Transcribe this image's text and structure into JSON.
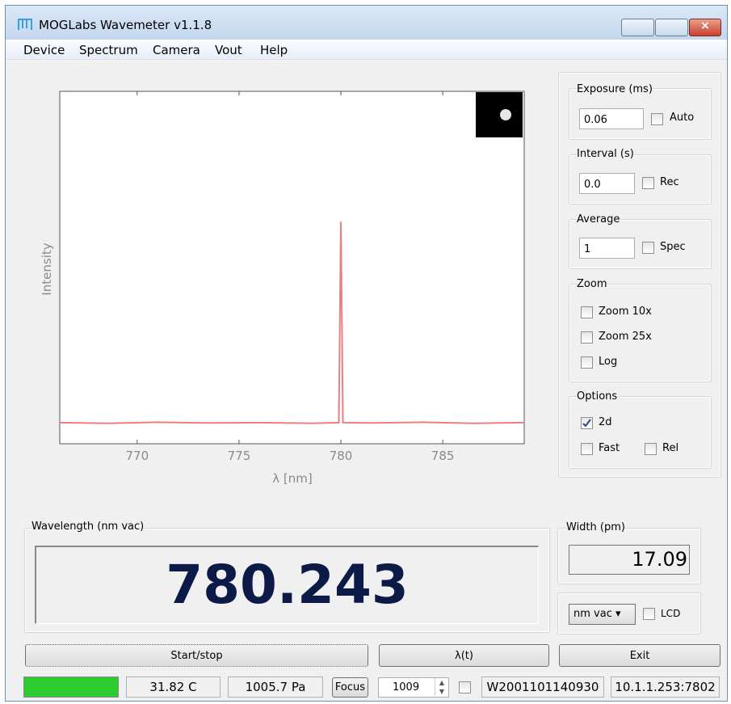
{
  "window": {
    "title": "MOGLabs Wavemeter v1.1.8"
  },
  "menu": [
    "Device",
    "Spectrum",
    "Camera",
    "Vout",
    "Help"
  ],
  "chart_data": {
    "type": "line",
    "xlabel": "λ [nm]",
    "ylabel": "Intensity",
    "x": [
      766.2,
      768.5,
      771.0,
      773.5,
      776.0,
      778.5,
      779.9,
      780.0,
      780.1,
      781.5,
      784.0,
      786.5,
      789.0
    ],
    "series": [
      {
        "color": "#e88080",
        "values": [
          0.06,
          0.058,
          0.061,
          0.059,
          0.06,
          0.058,
          0.06,
          0.63,
          0.06,
          0.059,
          0.061,
          0.058,
          0.06
        ]
      }
    ],
    "xlim": [
      766.2,
      789.0
    ],
    "ylim": [
      0,
      1
    ],
    "xticks": [
      770,
      775,
      780,
      785
    ]
  },
  "controls": {
    "exposure": {
      "label": "Exposure (ms)",
      "value": "0.06",
      "checkbox": {
        "label": "Auto",
        "checked": false
      }
    },
    "interval": {
      "label": "Interval (s)",
      "value": "0.0",
      "checkbox": {
        "label": "Rec",
        "checked": false
      }
    },
    "average": {
      "label": "Average",
      "value": "1",
      "checkbox": {
        "label": "Spec",
        "checked": false
      }
    },
    "zoom": {
      "label": "Zoom",
      "options": [
        {
          "label": "Zoom 10x",
          "checked": false
        },
        {
          "label": "Zoom 25x",
          "checked": false
        },
        {
          "label": "Log",
          "checked": false
        }
      ]
    },
    "options": {
      "label": "Options",
      "options": [
        {
          "label": "2d",
          "checked": true
        },
        {
          "label": "Fast",
          "checked": false
        },
        {
          "label": "Rel",
          "checked": false
        }
      ]
    }
  },
  "wavelength": {
    "label": "Wavelength (nm vac)",
    "value": "780.243"
  },
  "width": {
    "label": "Width (pm)",
    "value": "17.09"
  },
  "units": {
    "selected": "nm vac",
    "lcd": {
      "label": "LCD",
      "checked": false
    }
  },
  "buttons": [
    "Start/stop",
    "λ(t)",
    "Exit"
  ],
  "status": {
    "temperature": "31.82 C",
    "pressure": "1005.7 Pa",
    "focus": "Focus",
    "spinner": "1009",
    "checkbox_checked": false,
    "serial": "W2001101140930",
    "address": "10.1.1.253:7802"
  }
}
